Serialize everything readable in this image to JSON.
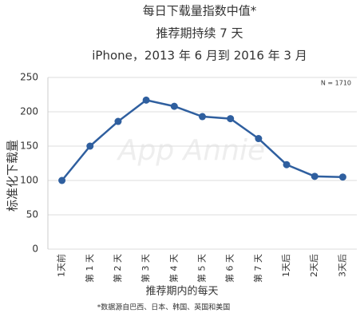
{
  "chart_data": {
    "type": "line",
    "title": [
      "每日下载量指数中值*",
      "推荐期持续 7 天",
      "iPhone，2013 年 6 月到 2016 年 3 月"
    ],
    "annotation": "N = 1710",
    "watermark": "App Annie",
    "footnote": "*数据源自巴西、日本、韩国、英国和美国",
    "x_label": "推荐期内的每天",
    "y_label": "标准化下载量",
    "categories": [
      "1天前",
      "第 1 天",
      "第 2 天",
      "第 3 天",
      "第 4 天",
      "第 5 天",
      "第 6 天",
      "第 7 天",
      "1天后",
      "2天后",
      "3天后"
    ],
    "values": [
      100,
      150,
      186,
      217,
      208,
      193,
      190,
      161,
      123,
      106,
      105
    ],
    "color": "#2f5f9f",
    "ylim": [
      0,
      250
    ],
    "yticks": [
      0,
      50,
      100,
      150,
      200,
      250
    ],
    "grid": true
  }
}
